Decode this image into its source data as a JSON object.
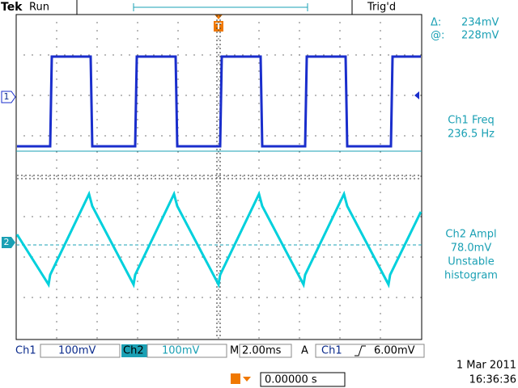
{
  "header": {
    "brand": "Tek",
    "state": "Run",
    "trigger_status": "Trig'd"
  },
  "cursor": {
    "delta_label": "Δ:",
    "delta": "234mV",
    "at_label": "@:",
    "at": "228mV"
  },
  "measurements": [
    {
      "label": "Ch1 Freq",
      "value": "236.5 Hz"
    },
    {
      "label": "Ch2 Ampl",
      "value": "78.0mV",
      "status": [
        "Unstable",
        "histogram"
      ]
    }
  ],
  "markers": {
    "ch1": "1",
    "ch2": "2",
    "trigger": "T"
  },
  "footer": {
    "ch1_label": "Ch1",
    "ch1_scale": "100mV",
    "ch2_label": "Ch2",
    "ch2_scale": "100mV",
    "timebase_label": "M",
    "timebase": "2.00ms",
    "trigger_mode": "A",
    "trigger_source": "Ch1",
    "trigger_level": "6.00mV",
    "position": "0.00000 s"
  },
  "datetime": {
    "date": "1 Mar 2011",
    "time": "16:36:36"
  }
}
